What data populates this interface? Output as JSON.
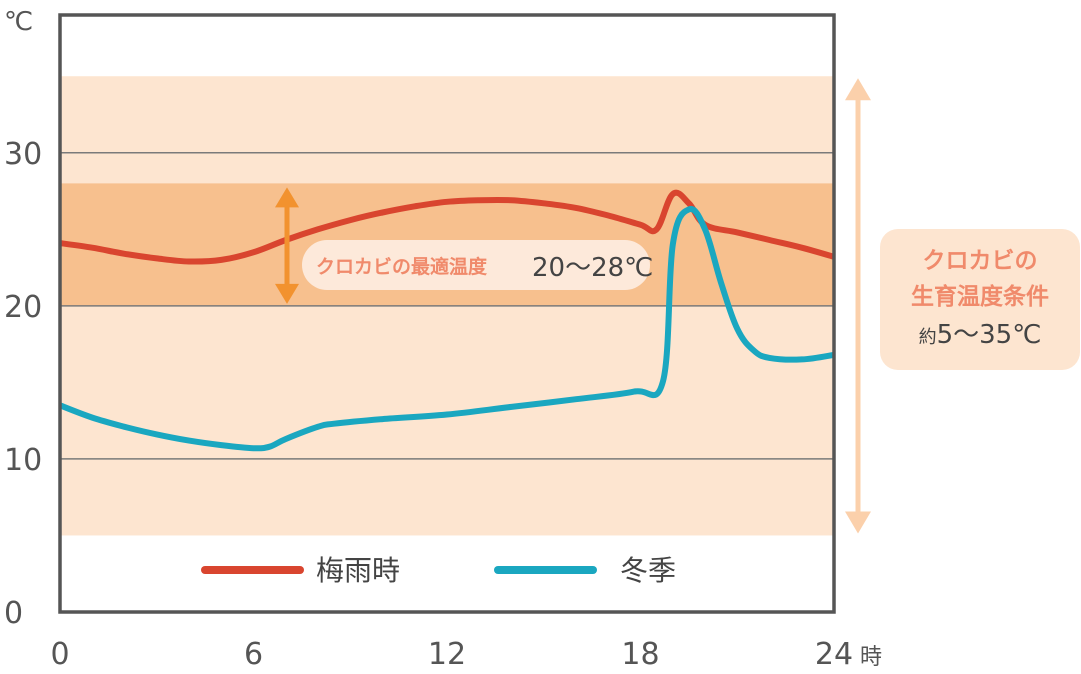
{
  "chart_data": {
    "type": "line",
    "title": "",
    "y_unit": "℃",
    "x_unit": "時",
    "xlim": [
      0,
      24
    ],
    "ylim": [
      0,
      39
    ],
    "x_ticks": [
      0,
      6,
      12,
      18,
      24
    ],
    "y_ticks": [
      0,
      10,
      20,
      30
    ],
    "gridlines_y": [
      10,
      20,
      30
    ],
    "series": [
      {
        "name": "梅雨時",
        "color": "#d9452f",
        "x": [
          0,
          1,
          2,
          3,
          4,
          5,
          6,
          7,
          8,
          9,
          10,
          11,
          12,
          13,
          14,
          15,
          16,
          17,
          18,
          18.5,
          19,
          19.5,
          20,
          21,
          22,
          23,
          24
        ],
        "y": [
          24.1,
          23.8,
          23.4,
          23.1,
          22.9,
          23.0,
          23.5,
          24.3,
          25.0,
          25.6,
          26.1,
          26.5,
          26.8,
          26.9,
          26.9,
          26.7,
          26.4,
          25.9,
          25.3,
          25.0,
          27.3,
          26.7,
          25.3,
          24.8,
          24.3,
          23.8,
          23.2
        ]
      },
      {
        "name": "冬季",
        "color": "#1aa7c0",
        "x": [
          0,
          1,
          2,
          3,
          4,
          5,
          6,
          6.5,
          7,
          8,
          8.5,
          10,
          12,
          14,
          16,
          17.8,
          18.7,
          19,
          19.5,
          20,
          20.5,
          21,
          21.5,
          22,
          23,
          24
        ],
        "y": [
          13.5,
          12.7,
          12.1,
          11.6,
          11.2,
          10.9,
          10.7,
          10.8,
          11.3,
          12.1,
          12.3,
          12.6,
          12.9,
          13.4,
          13.9,
          14.4,
          15.1,
          24.0,
          26.3,
          25.0,
          21.5,
          18.5,
          17.1,
          16.6,
          16.5,
          16.8
        ]
      }
    ],
    "bands": {
      "growth": {
        "range": [
          5,
          35
        ],
        "color": "#fde5d0"
      },
      "optimal": {
        "range": [
          20,
          28
        ],
        "color": "#f7c08e"
      }
    },
    "annotations": {
      "optimal": {
        "label": "クロカビの最適温度",
        "range_text": "20〜28℃",
        "label_color": "#f08a6b",
        "bg_color": "#fde9da",
        "arrow_color": "#f2922f"
      },
      "growth": {
        "line1": "クロカビの",
        "line2": "生育温度条件",
        "prefix": "約",
        "range_text": "5〜35℃",
        "label_color": "#f08a6b",
        "bg_color": "#fde5d0",
        "arrow_color": "#fbd0ab"
      }
    },
    "legend": {
      "placement": "bottom-inside"
    },
    "colors": {
      "axis": "#555555",
      "grid": "#7a7a7a"
    }
  }
}
